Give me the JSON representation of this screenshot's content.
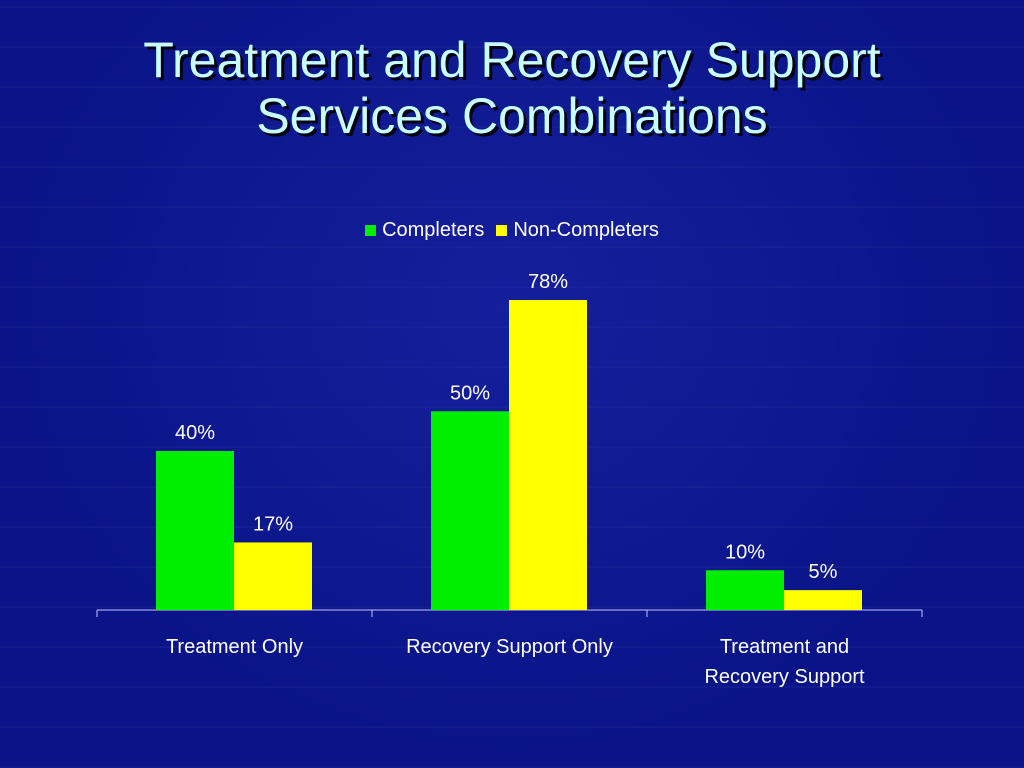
{
  "slide": {
    "title_line1": "Treatment and Recovery Support",
    "title_line2": "Services Combinations"
  },
  "colors": {
    "background": "#0a1488",
    "title": "#c8ffff",
    "completers": "#00ee00",
    "non_completers": "#ffff00"
  },
  "chart_data": {
    "type": "bar",
    "categories": [
      "Treatment Only",
      "Recovery Support Only",
      "Treatment and Recovery Support"
    ],
    "category_lines": [
      [
        "Treatment Only"
      ],
      [
        "Recovery Support Only"
      ],
      [
        "Treatment and",
        "Recovery Support"
      ]
    ],
    "series": [
      {
        "name": "Completers",
        "values": [
          40,
          50,
          10
        ],
        "labels": [
          "40%",
          "50%",
          "10%"
        ],
        "color": "#00ee00"
      },
      {
        "name": "Non-Completers",
        "values": [
          17,
          78,
          5
        ],
        "labels": [
          "17%",
          "78%",
          "5%"
        ],
        "color": "#ffff00"
      }
    ],
    "ylim": [
      0,
      78
    ],
    "legend_position": "top-center",
    "grid": false
  }
}
